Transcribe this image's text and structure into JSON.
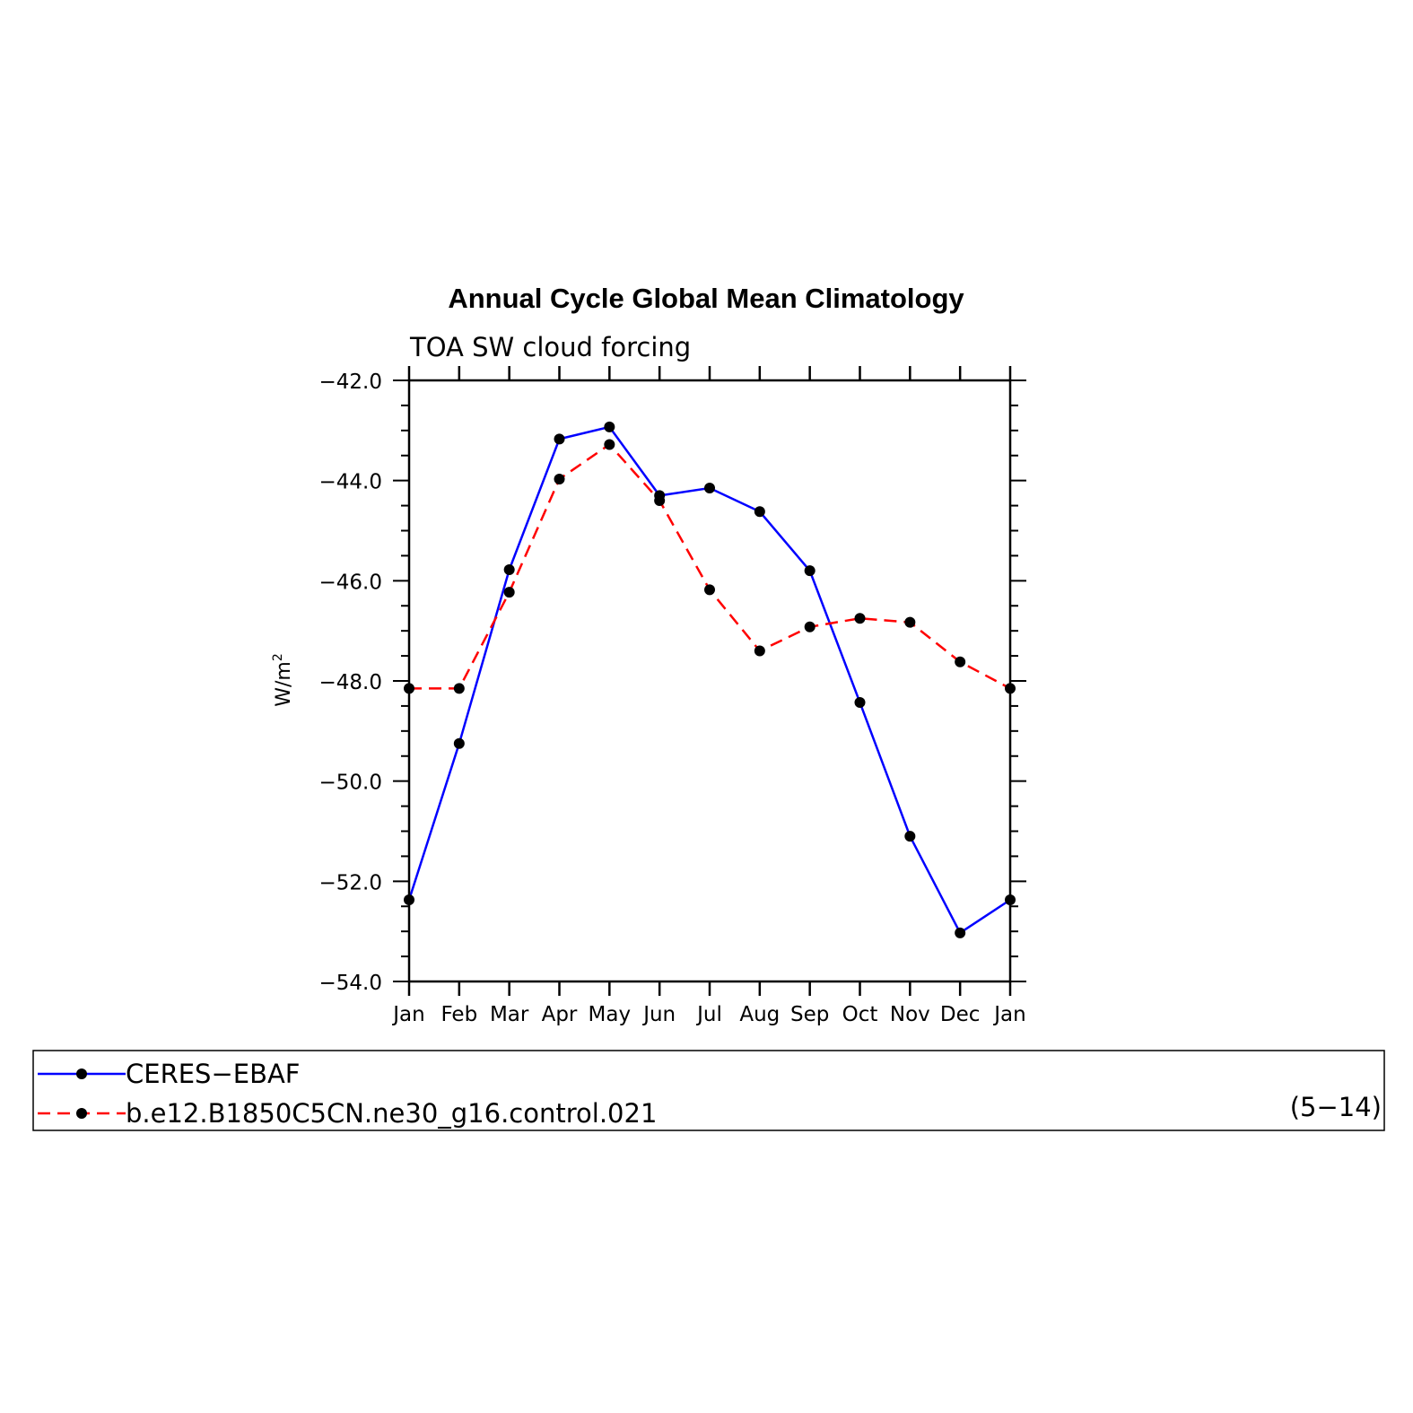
{
  "chart_data": {
    "type": "line",
    "title": "Annual Cycle Global Mean Climatology",
    "subtitle": "TOA SW cloud forcing",
    "ylabel": "W/m",
    "ylabel_superscript": "2",
    "xlabel": "",
    "categories": [
      "Jan",
      "Feb",
      "Mar",
      "Apr",
      "May",
      "Jun",
      "Jul",
      "Aug",
      "Sep",
      "Oct",
      "Nov",
      "Dec",
      "Jan"
    ],
    "ylim": [
      -54.0,
      -42.0
    ],
    "yticks": [
      "-42.0",
      "-44.0",
      "-46.0",
      "-48.0",
      "-50.0",
      "-52.0",
      "-54.0"
    ],
    "series": [
      {
        "name": "CERES-EBAF",
        "color": "#0000ff",
        "dash": "solid",
        "values": [
          -52.37,
          -49.25,
          -45.78,
          -43.17,
          -42.93,
          -44.3,
          -44.15,
          -44.62,
          -45.8,
          -48.43,
          -51.1,
          -53.03,
          -52.37
        ]
      },
      {
        "name": "b.e12.B1850C5CN.ne30_g16.control.021",
        "color": "#ff0000",
        "dash": "dashed",
        "values": [
          -48.15,
          -48.15,
          -46.23,
          -43.97,
          -43.28,
          -44.4,
          -46.18,
          -47.4,
          -46.92,
          -46.75,
          -46.83,
          -47.62,
          -48.15
        ]
      }
    ],
    "legend_note": "(5−14)",
    "legend_placement": "bottom"
  }
}
